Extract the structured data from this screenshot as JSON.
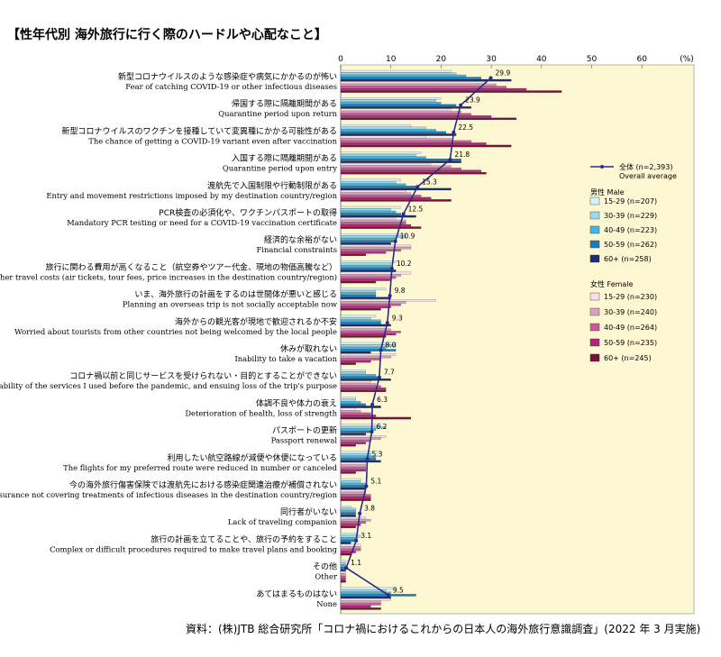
{
  "title": "【性年代別 海外旅行に行く際のハードルや心配なこと】",
  "source": "資料：(株)JTB 総合研究所「コロナ禍におけるこれからの日本人の海外旅行意識調査」(2022 年 3 月実施)",
  "colors": {
    "plot_bg": "#fdf7d2",
    "average_line": "#2a2a8a",
    "male": [
      "#d6f2fb",
      "#9cd9ef",
      "#41b7df",
      "#1f7bb5",
      "#1c2d6f"
    ],
    "female": [
      "#f9dfea",
      "#d8a2be",
      "#c55e97",
      "#b0267b",
      "#7a0f38"
    ]
  },
  "chart_data": {
    "type": "bar",
    "orientation": "horizontal",
    "axis_unit": "(%)",
    "xlim": [
      0,
      70
    ],
    "xticks": [
      "0",
      "10",
      "20",
      "30",
      "40",
      "50",
      "60"
    ],
    "grid": false,
    "legend_position": "right",
    "categories": [
      {
        "ja": "新型コロナウイルスのような感染症や病気にかかるのが怖い",
        "en": "Fear of catching COVID-19 or other infectious diseases"
      },
      {
        "ja": "帰国する際に隔離期間がある",
        "en": "Quarantine period upon return"
      },
      {
        "ja": "新型コロナウイルスのワクチンを接種していて変異種にかかる可能性がある",
        "en": "The chance of getting a COVID-19 variant even after vaccination"
      },
      {
        "ja": "入国する際に隔離期間がある",
        "en": "Quarantine period upon entry"
      },
      {
        "ja": "渡航先で入国制限や行動制限がある",
        "en": "Entry and movement restrictions imposed by my destination country/region"
      },
      {
        "ja": "PCR検査の必須化や、ワクチンパスポートの取得",
        "en": "Mandatory PCR testing or need for a COVID-19 vaccination certificate"
      },
      {
        "ja": "経済的な余裕がない",
        "en": "Financial constraints"
      },
      {
        "ja": "旅行に関わる費用が高くなること（航空券やツアー代金、現地の物価高騰など）",
        "en": "Higher travel costs (air tickets, tour fees, price increases in the destination country/region)"
      },
      {
        "ja": "いま、海外旅行の計画をするのは世間体が悪いと感じる",
        "en": "Planning an overseas trip is not socially acceptable now"
      },
      {
        "ja": "海外からの観光客が現地で歓迎されるか不安",
        "en": "Worried about tourists from other countries not being welcomed by the local people"
      },
      {
        "ja": "休みが取れない",
        "en": "Inability to take a vacation"
      },
      {
        "ja": "コロナ禍以前と同じサービスを受けられない・目的とすることができない",
        "en": "Unavailability of the services I used before the pandemic, and ensuing loss of the trip's purpose"
      },
      {
        "ja": "体調不良や体力の衰え",
        "en": "Deterioration of health, loss of strength"
      },
      {
        "ja": "パスポートの更新",
        "en": "Passport renewal"
      },
      {
        "ja": "利用したい航空路線が減便や休便になっている",
        "en": "The flights for my preferred route were reduced in number or canceled"
      },
      {
        "ja": "今の海外旅行傷害保険では渡航先における感染症関連治療が補償されない",
        "en": "My travel insurance not covering treatments of infectious diseases in the destination country/region"
      },
      {
        "ja": "同行者がいない",
        "en": "Lack of traveling companion"
      },
      {
        "ja": "旅行の計画を立てることや、旅行の予約をすること",
        "en": "Complex or difficult procedures required to make travel plans and booking"
      },
      {
        "ja": "その他",
        "en": "Other"
      },
      {
        "ja": "あてはまるものはない",
        "en": "None"
      }
    ],
    "average": {
      "name": "全体 (n=2,393)",
      "name_en": "Overall average",
      "values": [
        29.9,
        23.9,
        22.5,
        21.8,
        15.3,
        12.5,
        10.9,
        10.2,
        9.8,
        9.3,
        8.0,
        7.7,
        6.3,
        6.2,
        5.3,
        5.1,
        3.8,
        3.1,
        1.1,
        9.5
      ],
      "labels": [
        "29.9",
        "23.9",
        "22.5",
        "21.8",
        "15.3",
        "12.5",
        "10.9",
        "10.2",
        "9.8",
        "9.3",
        "8.0",
        "7.7",
        "6.3",
        "6.2",
        "5.3",
        "5.1",
        "3.8",
        "3.1",
        "1.1",
        "9.5"
      ]
    },
    "legend_male_header": "男性 Male",
    "legend_female_header": "女性 Female",
    "series": [
      {
        "group": "male",
        "name": "15-29 (n=207)",
        "values": [
          22,
          20,
          14,
          16,
          12,
          12,
          13,
          11,
          9,
          7,
          11,
          5,
          3,
          8,
          8,
          4,
          2,
          3,
          1,
          11
        ]
      },
      {
        "group": "male",
        "name": "30-39 (n=229)",
        "values": [
          23,
          19,
          17,
          15,
          11,
          10,
          13,
          10,
          7,
          6,
          11,
          5,
          3,
          9,
          6,
          4,
          3,
          4,
          1,
          9
        ]
      },
      {
        "group": "male",
        "name": "40-49 (n=223)",
        "values": [
          25,
          20,
          19,
          17,
          13,
          11,
          11,
          10,
          7,
          8,
          9,
          7,
          4,
          7,
          7,
          5,
          3,
          3,
          1,
          10
        ]
      },
      {
        "group": "male",
        "name": "50-59 (n=262)",
        "values": [
          28,
          23,
          21,
          24,
          15,
          12,
          11,
          10,
          7,
          8,
          11,
          8,
          5,
          6,
          7,
          5,
          3,
          3,
          1,
          15
        ]
      },
      {
        "group": "male",
        "name": "60+ (n=258)",
        "values": [
          34,
          26,
          23,
          24,
          22,
          15,
          10,
          11,
          10,
          10,
          6,
          10,
          8,
          5,
          8,
          5,
          3,
          2,
          1,
          10
        ]
      },
      {
        "group": "female",
        "name": "15-29 (n=230)",
        "values": [
          29,
          22,
          17,
          18,
          13,
          11,
          14,
          14,
          19,
          9,
          11,
          6,
          3,
          9,
          5,
          5,
          5,
          4,
          1,
          10
        ]
      },
      {
        "group": "female",
        "name": "30-39 (n=240)",
        "values": [
          31,
          24,
          22,
          22,
          14,
          13,
          14,
          12,
          13,
          10,
          10,
          7,
          4,
          8,
          5,
          5,
          6,
          4,
          1,
          8
        ]
      },
      {
        "group": "female",
        "name": "40-49 (n=264)",
        "values": [
          33,
          26,
          26,
          24,
          16,
          13,
          12,
          11,
          12,
          12,
          8,
          8,
          6,
          6,
          5,
          6,
          5,
          4,
          1,
          8
        ]
      },
      {
        "group": "female",
        "name": "50-59 (n=235)",
        "values": [
          37,
          30,
          29,
          28,
          18,
          14,
          9,
          10,
          10,
          11,
          6,
          9,
          7,
          5,
          5,
          6,
          4,
          3,
          1,
          6
        ]
      },
      {
        "group": "female",
        "name": "60+ (n=245)",
        "values": [
          44,
          35,
          34,
          29,
          22,
          16,
          5,
          7,
          8,
          9,
          3,
          9,
          14,
          3,
          3,
          6,
          3,
          2,
          1,
          8
        ]
      }
    ]
  }
}
